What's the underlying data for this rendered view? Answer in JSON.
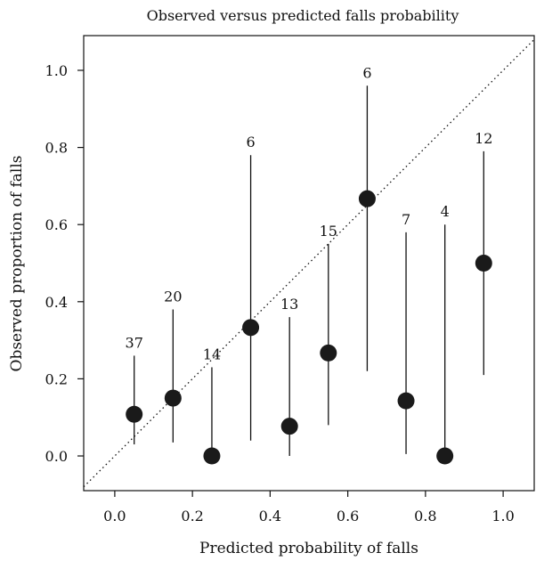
{
  "chart_data": {
    "type": "scatter",
    "title": "Observed versus predicted falls probability",
    "xlabel": "Predicted probability of falls",
    "ylabel": "Observed proportion of falls",
    "xlim": [
      -0.08,
      1.08
    ],
    "ylim": [
      -0.09,
      1.09
    ],
    "xticks": [
      "0.0",
      "0.2",
      "0.4",
      "0.6",
      "0.8",
      "1.0"
    ],
    "yticks": [
      "0.0",
      "0.2",
      "0.4",
      "0.6",
      "0.8",
      "1.0"
    ],
    "reference_line": "diagonal y = x (dotted)",
    "grid": false,
    "points": [
      {
        "x": 0.05,
        "y": 0.108,
        "lower": 0.03,
        "upper": 0.26,
        "n": "37"
      },
      {
        "x": 0.15,
        "y": 0.15,
        "lower": 0.035,
        "upper": 0.38,
        "n": "20"
      },
      {
        "x": 0.25,
        "y": 0.0,
        "lower": 0.0,
        "upper": 0.23,
        "n": "14"
      },
      {
        "x": 0.35,
        "y": 0.333,
        "lower": 0.04,
        "upper": 0.78,
        "n": "6"
      },
      {
        "x": 0.45,
        "y": 0.077,
        "lower": 0.0,
        "upper": 0.36,
        "n": "13"
      },
      {
        "x": 0.55,
        "y": 0.267,
        "lower": 0.08,
        "upper": 0.55,
        "n": "15"
      },
      {
        "x": 0.65,
        "y": 0.667,
        "lower": 0.22,
        "upper": 0.96,
        "n": "6"
      },
      {
        "x": 0.75,
        "y": 0.143,
        "lower": 0.005,
        "upper": 0.58,
        "n": "7"
      },
      {
        "x": 0.85,
        "y": 0.0,
        "lower": 0.0,
        "upper": 0.6,
        "n": "4"
      },
      {
        "x": 0.95,
        "y": 0.5,
        "lower": 0.21,
        "upper": 0.79,
        "n": "12"
      }
    ]
  }
}
